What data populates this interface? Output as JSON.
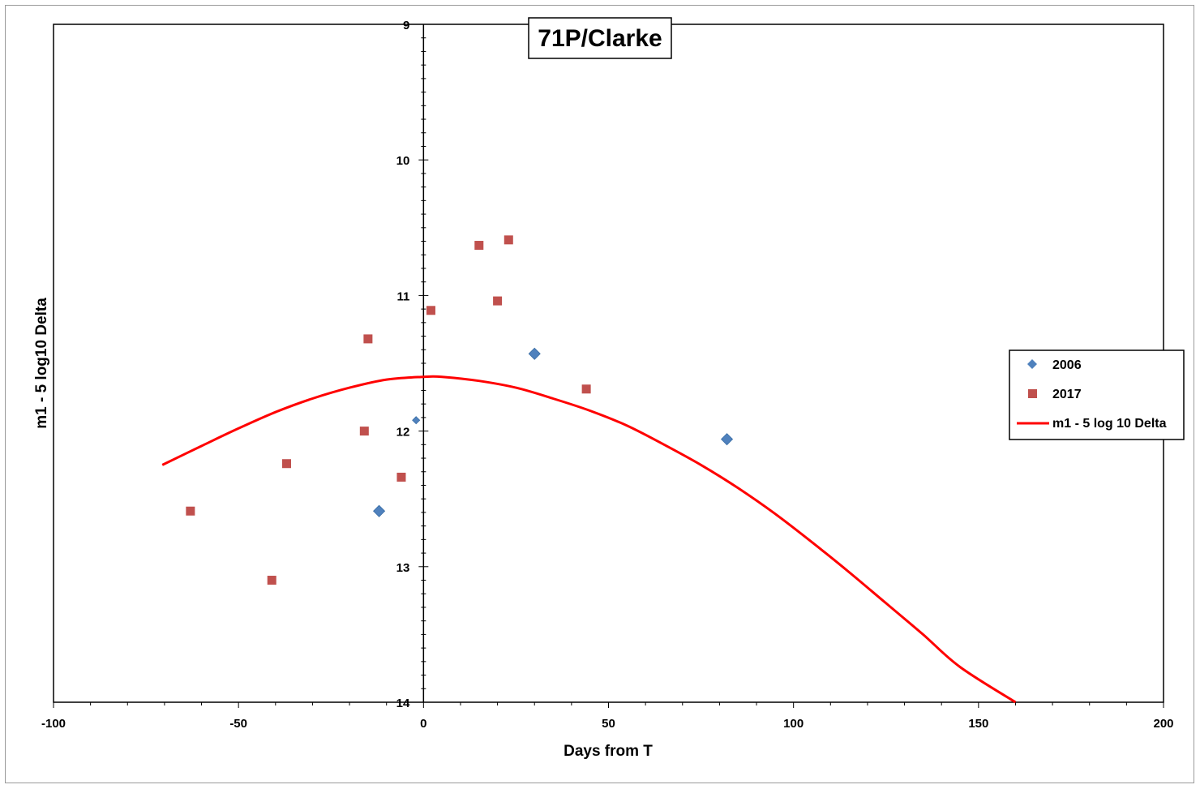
{
  "chart_data": {
    "type": "scatter",
    "title": "71P/Clarke",
    "xlabel": "Days from T",
    "ylabel": "m1 - 5 log10 Delta",
    "xlim": [
      -100,
      200
    ],
    "ylim": [
      9,
      14
    ],
    "y_inverted": true,
    "x_ticks": [
      -100,
      -50,
      0,
      50,
      100,
      150,
      200
    ],
    "x_tick_labels": [
      "-100",
      "-50",
      "0",
      "50",
      "100",
      "150",
      "200"
    ],
    "y_ticks": [
      9,
      10,
      11,
      12,
      13,
      14
    ],
    "y_tick_labels": [
      "9",
      "10",
      "11",
      "12",
      "13",
      "14"
    ],
    "y_axis_crosses_at_x": 0,
    "grid": false,
    "legend_position": "right",
    "series": [
      {
        "name": "2006",
        "marker": "diamond",
        "color": "#4F81BD",
        "points": [
          {
            "x": -12,
            "y": 12.59
          },
          {
            "x": -2,
            "y": 11.92
          },
          {
            "x": 30,
            "y": 11.43
          },
          {
            "x": 82,
            "y": 12.06
          }
        ]
      },
      {
        "name": "2017",
        "marker": "square",
        "color": "#C0504D",
        "points": [
          {
            "x": -63,
            "y": 12.59
          },
          {
            "x": -41,
            "y": 13.1
          },
          {
            "x": -37,
            "y": 12.24
          },
          {
            "x": -16,
            "y": 12.0
          },
          {
            "x": -15,
            "y": 11.32
          },
          {
            "x": -6,
            "y": 12.34
          },
          {
            "x": 2,
            "y": 11.11
          },
          {
            "x": 15,
            "y": 10.63
          },
          {
            "x": 20,
            "y": 11.04
          },
          {
            "x": 23,
            "y": 10.59
          },
          {
            "x": 44,
            "y": 11.69
          }
        ]
      },
      {
        "name": "m1 - 5 log 10 Delta",
        "type": "line",
        "color": "#FF0000",
        "points": [
          {
            "x": -70.6,
            "y": 12.25
          },
          {
            "x": -60,
            "y": 12.11
          },
          {
            "x": -50,
            "y": 11.98
          },
          {
            "x": -40,
            "y": 11.86
          },
          {
            "x": -30,
            "y": 11.76
          },
          {
            "x": -20,
            "y": 11.68
          },
          {
            "x": -10,
            "y": 11.62
          },
          {
            "x": 0,
            "y": 11.6
          },
          {
            "x": 5,
            "y": 11.6
          },
          {
            "x": 15,
            "y": 11.63
          },
          {
            "x": 25,
            "y": 11.68
          },
          {
            "x": 35,
            "y": 11.76
          },
          {
            "x": 45,
            "y": 11.85
          },
          {
            "x": 55,
            "y": 11.96
          },
          {
            "x": 65,
            "y": 12.1
          },
          {
            "x": 75,
            "y": 12.25
          },
          {
            "x": 85,
            "y": 12.42
          },
          {
            "x": 95,
            "y": 12.61
          },
          {
            "x": 105,
            "y": 12.82
          },
          {
            "x": 115,
            "y": 13.04
          },
          {
            "x": 125,
            "y": 13.27
          },
          {
            "x": 135,
            "y": 13.5
          },
          {
            "x": 145,
            "y": 13.74
          },
          {
            "x": 160,
            "y": 14.0
          }
        ]
      }
    ]
  }
}
